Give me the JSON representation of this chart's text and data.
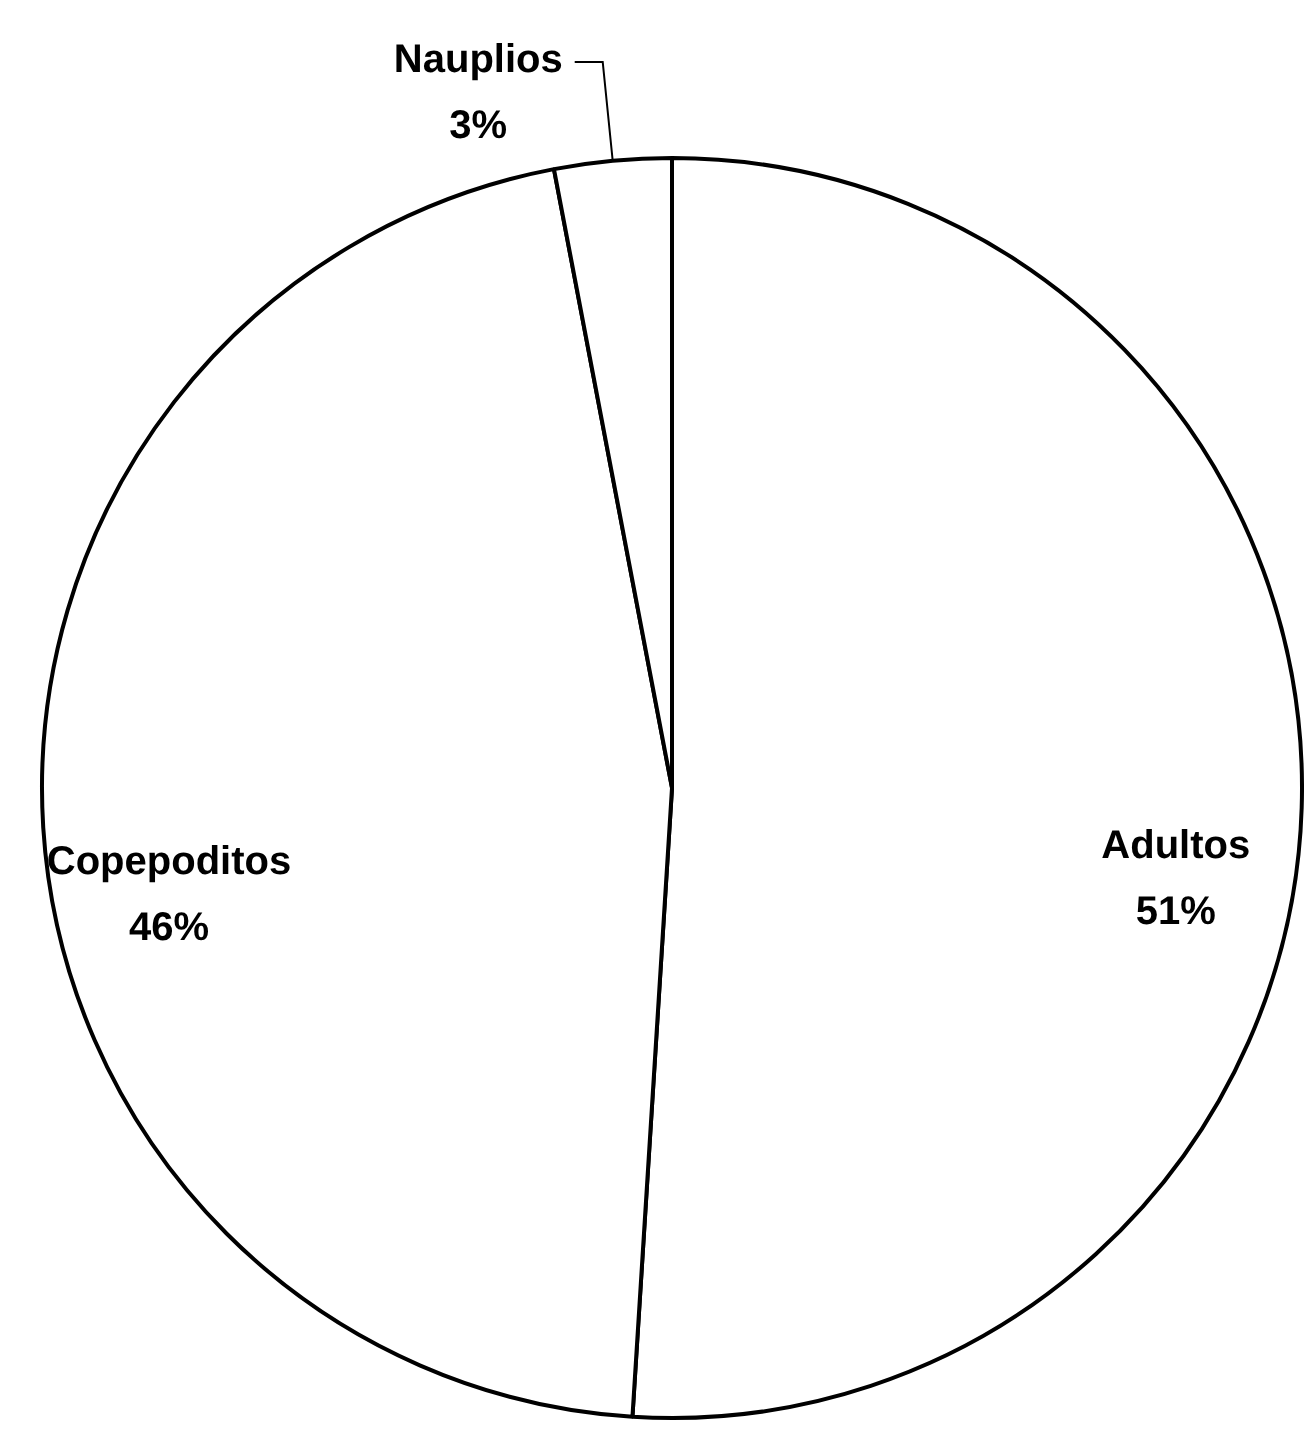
{
  "chart_data": {
    "type": "pie",
    "categories": [
      "Adultos",
      "Copepoditos",
      "Nauplios"
    ],
    "values": [
      51,
      46,
      3
    ],
    "colors": [
      "#ffffff",
      "#ffffff",
      "#ffffff"
    ],
    "value_labels": [
      "51%",
      "46%",
      "3%"
    ]
  }
}
